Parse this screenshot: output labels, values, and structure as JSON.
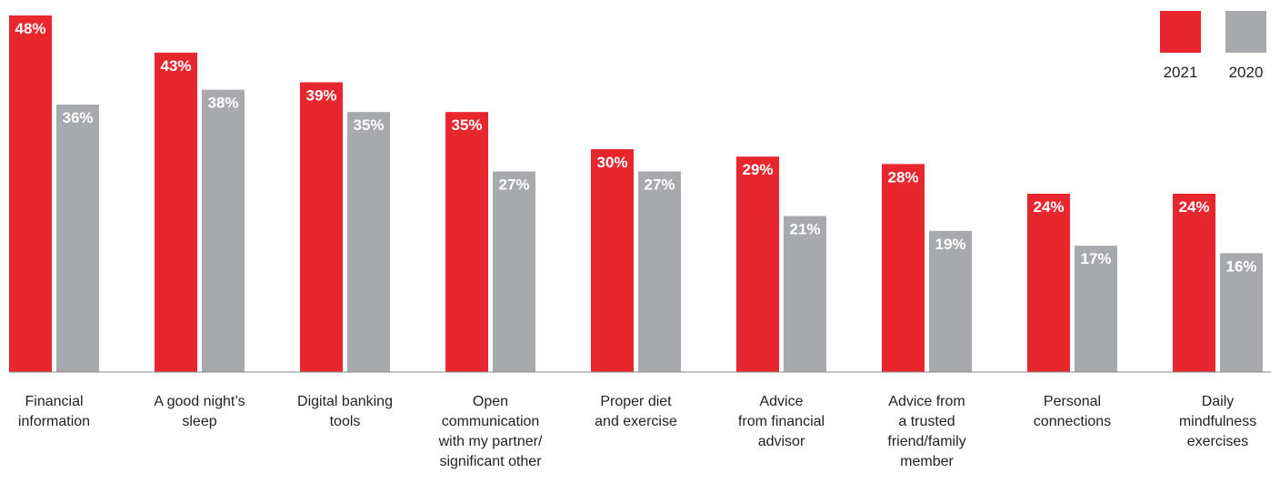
{
  "chart_data": {
    "type": "bar",
    "categories": [
      [
        "Financial",
        "information"
      ],
      [
        "A good night’s",
        "sleep"
      ],
      [
        "Digital banking",
        "tools"
      ],
      [
        "Open",
        "communication",
        "with my partner/",
        "significant other"
      ],
      [
        "Proper diet",
        "and exercise"
      ],
      [
        "Advice",
        "from financial",
        "advisor"
      ],
      [
        "Advice from",
        "a trusted",
        "friend/family",
        "member"
      ],
      [
        "Personal",
        "connections"
      ],
      [
        "Daily",
        "mindfulness",
        "exercises"
      ]
    ],
    "series": [
      {
        "name": "2021",
        "color": "#e8262d",
        "values": [
          48,
          43,
          39,
          35,
          30,
          29,
          28,
          24,
          24
        ]
      },
      {
        "name": "2020",
        "color": "#a7a9ac",
        "values": [
          36,
          38,
          35,
          27,
          27,
          21,
          19,
          17,
          16
        ]
      }
    ],
    "value_suffix": "%",
    "ylim": [
      0,
      48
    ],
    "legend_position": "top-right",
    "grid": false
  }
}
